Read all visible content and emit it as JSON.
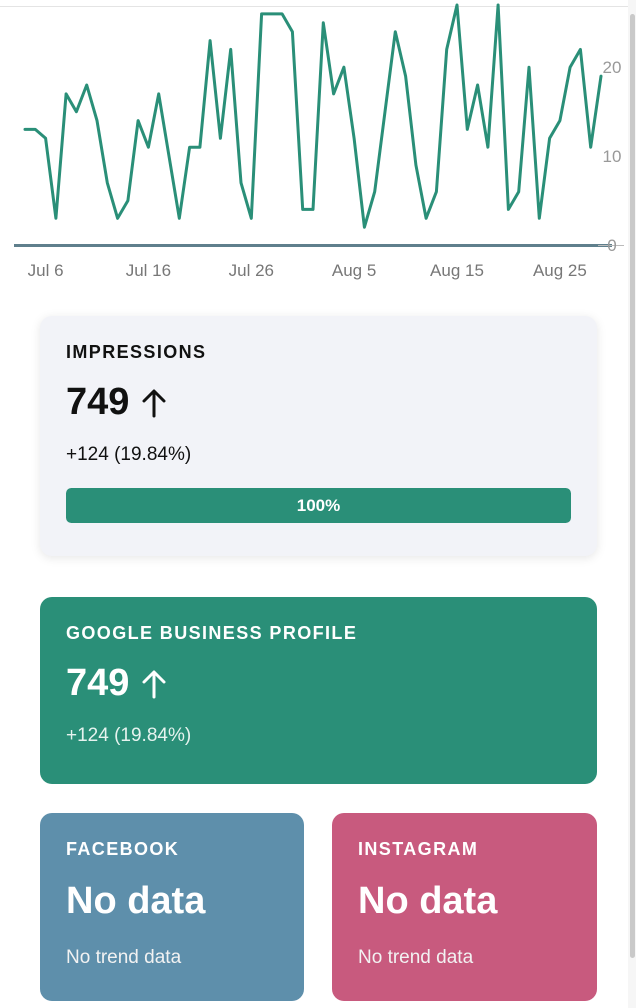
{
  "chart_data": {
    "type": "line",
    "x_tick_labels": [
      "Jul 6",
      "Jul 16",
      "Jul 26",
      "Aug 5",
      "Aug 15",
      "Aug 25"
    ],
    "y_tick_labels": [
      "0",
      "10",
      "20"
    ],
    "ylim": [
      0,
      27
    ],
    "grid": false,
    "line_color": "#2a8f78",
    "series": [
      {
        "x": [
          "Jul 4",
          "Jul 5",
          "Jul 6",
          "Jul 7",
          "Jul 8",
          "Jul 9",
          "Jul 10",
          "Jul 11",
          "Jul 12",
          "Jul 13",
          "Jul 14",
          "Jul 15",
          "Jul 16",
          "Jul 17",
          "Jul 18",
          "Jul 19",
          "Jul 20",
          "Jul 21",
          "Jul 22",
          "Jul 23",
          "Jul 24",
          "Jul 25",
          "Jul 26",
          "Jul 27",
          "Jul 28",
          "Jul 29",
          "Jul 30",
          "Jul 31",
          "Aug 1",
          "Aug 2",
          "Aug 3",
          "Aug 4",
          "Aug 5",
          "Aug 6",
          "Aug 7",
          "Aug 8",
          "Aug 9",
          "Aug 10",
          "Aug 11",
          "Aug 12",
          "Aug 13",
          "Aug 14",
          "Aug 15",
          "Aug 16",
          "Aug 17",
          "Aug 18",
          "Aug 19",
          "Aug 20",
          "Aug 21",
          "Aug 22",
          "Aug 23",
          "Aug 24",
          "Aug 25",
          "Aug 26",
          "Aug 27",
          "Aug 28",
          "Aug 29"
        ],
        "y": [
          13,
          13,
          12,
          3,
          17,
          15,
          18,
          14,
          7,
          3,
          5,
          14,
          11,
          17,
          10,
          3,
          11,
          11,
          23,
          12,
          22,
          7,
          3,
          26,
          26,
          26,
          24,
          4,
          4,
          25,
          17,
          20,
          12,
          2,
          6,
          15,
          24,
          19,
          9,
          3,
          6,
          22,
          27,
          13,
          18,
          11,
          27,
          4,
          6,
          20,
          3,
          12,
          14,
          20,
          22,
          11,
          19
        ]
      }
    ]
  },
  "impressions": {
    "title": "IMPRESSIONS",
    "value": "749",
    "delta": "+124 (19.84%)",
    "progress": 1.0,
    "progress_label": "100%"
  },
  "google_business_profile": {
    "title": "GOOGLE BUSINESS PROFILE",
    "value": "749",
    "delta": "+124 (19.84%)"
  },
  "facebook": {
    "title": "FACEBOOK",
    "value": "No data",
    "sub": "No trend data"
  },
  "instagram": {
    "title": "INSTAGRAM",
    "value": "No data",
    "sub": "No trend data"
  },
  "icons": {
    "trend": "arrow-up-icon"
  },
  "colors": {
    "accent_green": "#2a8f78",
    "facebook_blue": "#5e8fab",
    "instagram_pink": "#c85a7e"
  }
}
